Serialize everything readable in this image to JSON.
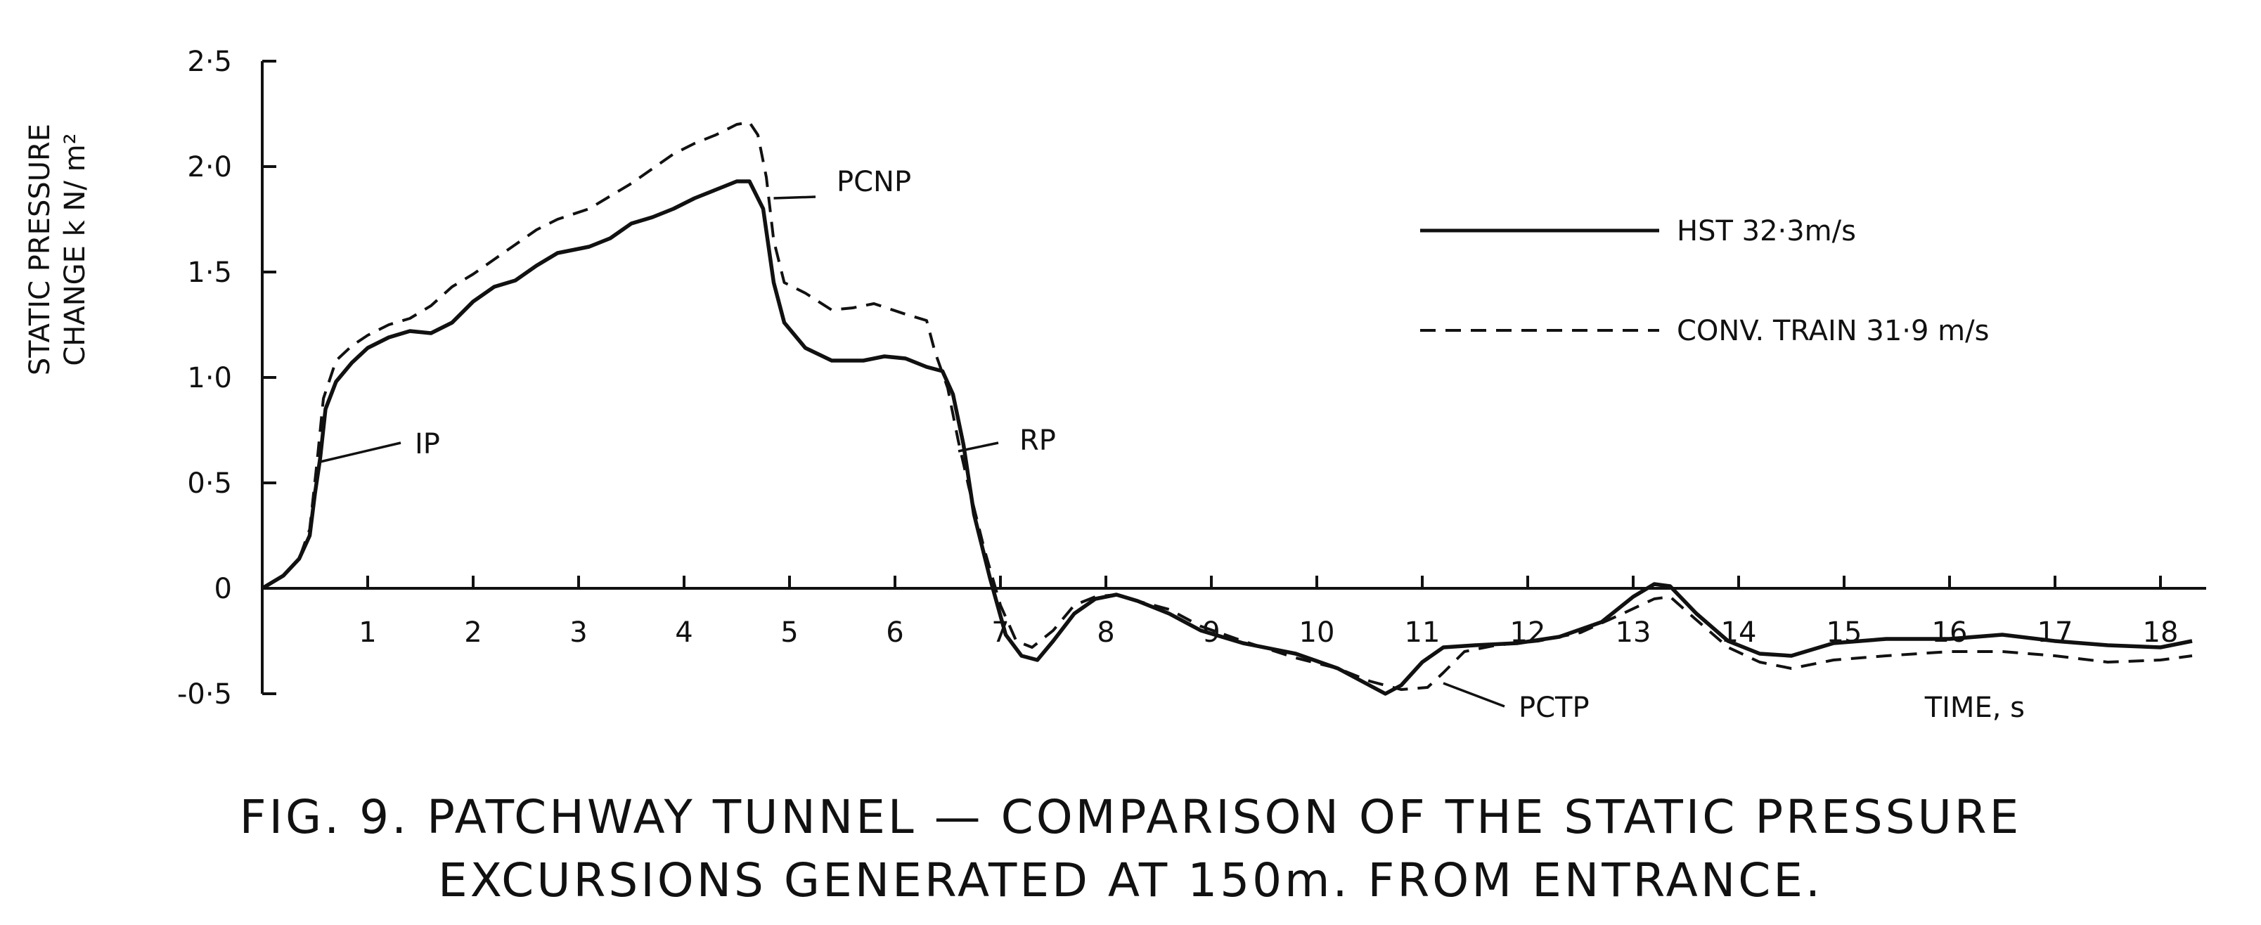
{
  "chart_data": {
    "type": "line",
    "ylabel": [
      "STATIC PRESSURE",
      "CHANGE k N/ m²"
    ],
    "xlabel": "TIME, s",
    "xlim": [
      0,
      18.3
    ],
    "ylim": [
      -0.5,
      2.5
    ],
    "x_ticks": [
      "1",
      "2",
      "3",
      "4",
      "5",
      "6",
      "7",
      "8",
      "9",
      "10",
      "11",
      "12",
      "13",
      "14",
      "15",
      "16",
      "17",
      "18"
    ],
    "y_ticks": [
      {
        "value": 2.5,
        "label": "2·5"
      },
      {
        "value": 2.0,
        "label": "2·0"
      },
      {
        "value": 1.5,
        "label": "1·5"
      },
      {
        "value": 1.0,
        "label": "1·0"
      },
      {
        "value": 0.5,
        "label": "0·5"
      },
      {
        "value": 0,
        "label": "0"
      },
      {
        "value": -0.5,
        "label": "-0·5"
      }
    ],
    "legend_position": "upper-right",
    "series": [
      {
        "name": "HST 32·3m/s",
        "style": "solid",
        "points": [
          [
            0,
            0
          ],
          [
            0.2,
            0.06
          ],
          [
            0.35,
            0.14
          ],
          [
            0.45,
            0.25
          ],
          [
            0.5,
            0.45
          ],
          [
            0.55,
            0.62
          ],
          [
            0.6,
            0.85
          ],
          [
            0.7,
            0.98
          ],
          [
            0.85,
            1.07
          ],
          [
            1.0,
            1.14
          ],
          [
            1.2,
            1.19
          ],
          [
            1.4,
            1.22
          ],
          [
            1.6,
            1.21
          ],
          [
            1.8,
            1.26
          ],
          [
            2.0,
            1.36
          ],
          [
            2.2,
            1.43
          ],
          [
            2.4,
            1.46
          ],
          [
            2.6,
            1.53
          ],
          [
            2.8,
            1.59
          ],
          [
            3.1,
            1.62
          ],
          [
            3.3,
            1.66
          ],
          [
            3.5,
            1.73
          ],
          [
            3.7,
            1.76
          ],
          [
            3.9,
            1.8
          ],
          [
            4.1,
            1.85
          ],
          [
            4.3,
            1.89
          ],
          [
            4.5,
            1.93
          ],
          [
            4.62,
            1.93
          ],
          [
            4.75,
            1.8
          ],
          [
            4.85,
            1.45
          ],
          [
            4.95,
            1.26
          ],
          [
            5.15,
            1.14
          ],
          [
            5.4,
            1.08
          ],
          [
            5.7,
            1.08
          ],
          [
            5.9,
            1.1
          ],
          [
            6.1,
            1.09
          ],
          [
            6.3,
            1.05
          ],
          [
            6.45,
            1.03
          ],
          [
            6.55,
            0.92
          ],
          [
            6.65,
            0.68
          ],
          [
            6.75,
            0.35
          ],
          [
            6.9,
            0.05
          ],
          [
            7.05,
            -0.22
          ],
          [
            7.2,
            -0.32
          ],
          [
            7.35,
            -0.34
          ],
          [
            7.5,
            -0.25
          ],
          [
            7.7,
            -0.12
          ],
          [
            7.9,
            -0.05
          ],
          [
            8.1,
            -0.03
          ],
          [
            8.3,
            -0.06
          ],
          [
            8.6,
            -0.12
          ],
          [
            8.9,
            -0.2
          ],
          [
            9.3,
            -0.26
          ],
          [
            9.8,
            -0.31
          ],
          [
            10.2,
            -0.38
          ],
          [
            10.5,
            -0.46
          ],
          [
            10.65,
            -0.5
          ],
          [
            10.8,
            -0.46
          ],
          [
            11.0,
            -0.35
          ],
          [
            11.2,
            -0.28
          ],
          [
            11.5,
            -0.27
          ],
          [
            11.9,
            -0.26
          ],
          [
            12.3,
            -0.23
          ],
          [
            12.7,
            -0.16
          ],
          [
            13.0,
            -0.04
          ],
          [
            13.2,
            0.02
          ],
          [
            13.35,
            0.01
          ],
          [
            13.6,
            -0.12
          ],
          [
            13.9,
            -0.25
          ],
          [
            14.2,
            -0.31
          ],
          [
            14.5,
            -0.32
          ],
          [
            14.9,
            -0.26
          ],
          [
            15.4,
            -0.24
          ],
          [
            16.0,
            -0.24
          ],
          [
            16.5,
            -0.22
          ],
          [
            17.0,
            -0.25
          ],
          [
            17.5,
            -0.27
          ],
          [
            18.0,
            -0.28
          ],
          [
            18.3,
            -0.25
          ]
        ]
      },
      {
        "name": "CONV. TRAIN 31·9 m/s",
        "style": "dashed",
        "points": [
          [
            0,
            0
          ],
          [
            0.2,
            0.06
          ],
          [
            0.35,
            0.14
          ],
          [
            0.45,
            0.28
          ],
          [
            0.52,
            0.6
          ],
          [
            0.58,
            0.9
          ],
          [
            0.7,
            1.08
          ],
          [
            0.85,
            1.15
          ],
          [
            1.0,
            1.2
          ],
          [
            1.2,
            1.25
          ],
          [
            1.4,
            1.28
          ],
          [
            1.6,
            1.34
          ],
          [
            1.8,
            1.43
          ],
          [
            2.0,
            1.49
          ],
          [
            2.2,
            1.56
          ],
          [
            2.4,
            1.63
          ],
          [
            2.6,
            1.7
          ],
          [
            2.8,
            1.75
          ],
          [
            3.1,
            1.8
          ],
          [
            3.3,
            1.86
          ],
          [
            3.5,
            1.92
          ],
          [
            3.7,
            1.99
          ],
          [
            3.9,
            2.06
          ],
          [
            4.1,
            2.11
          ],
          [
            4.3,
            2.15
          ],
          [
            4.5,
            2.2
          ],
          [
            4.62,
            2.21
          ],
          [
            4.7,
            2.15
          ],
          [
            4.78,
            1.95
          ],
          [
            4.85,
            1.65
          ],
          [
            4.95,
            1.45
          ],
          [
            5.15,
            1.4
          ],
          [
            5.4,
            1.32
          ],
          [
            5.6,
            1.33
          ],
          [
            5.8,
            1.35
          ],
          [
            6.1,
            1.3
          ],
          [
            6.3,
            1.27
          ],
          [
            6.38,
            1.12
          ],
          [
            6.5,
            0.95
          ],
          [
            6.6,
            0.7
          ],
          [
            6.7,
            0.48
          ],
          [
            6.85,
            0.18
          ],
          [
            7.0,
            -0.08
          ],
          [
            7.15,
            -0.25
          ],
          [
            7.3,
            -0.28
          ],
          [
            7.5,
            -0.2
          ],
          [
            7.7,
            -0.08
          ],
          [
            7.9,
            -0.04
          ],
          [
            8.1,
            -0.03
          ],
          [
            8.3,
            -0.06
          ],
          [
            8.6,
            -0.1
          ],
          [
            8.9,
            -0.18
          ],
          [
            9.3,
            -0.25
          ],
          [
            9.8,
            -0.33
          ],
          [
            10.2,
            -0.38
          ],
          [
            10.5,
            -0.44
          ],
          [
            10.8,
            -0.48
          ],
          [
            11.05,
            -0.47
          ],
          [
            11.2,
            -0.4
          ],
          [
            11.4,
            -0.3
          ],
          [
            11.7,
            -0.27
          ],
          [
            12.1,
            -0.25
          ],
          [
            12.5,
            -0.21
          ],
          [
            12.9,
            -0.12
          ],
          [
            13.2,
            -0.05
          ],
          [
            13.35,
            -0.04
          ],
          [
            13.6,
            -0.15
          ],
          [
            13.9,
            -0.28
          ],
          [
            14.2,
            -0.35
          ],
          [
            14.5,
            -0.38
          ],
          [
            14.9,
            -0.34
          ],
          [
            15.4,
            -0.32
          ],
          [
            16.0,
            -0.3
          ],
          [
            16.5,
            -0.3
          ],
          [
            17.0,
            -0.32
          ],
          [
            17.5,
            -0.35
          ],
          [
            18.0,
            -0.34
          ],
          [
            18.3,
            -0.32
          ]
        ]
      }
    ],
    "annotations": [
      {
        "text": "IP",
        "x": 0.55,
        "y": 0.6
      },
      {
        "text": "PCNP",
        "x": 4.85,
        "y": 1.85
      },
      {
        "text": "RP",
        "x": 6.6,
        "y": 0.65
      },
      {
        "text": "PCTP",
        "x": 11.2,
        "y": -0.45
      }
    ]
  },
  "caption": {
    "line1": "FIG. 9. PATCHWAY TUNNEL — COMPARISON OF THE STATIC PRESSURE",
    "line2": "EXCURSIONS GENERATED AT 150m. FROM ENTRANCE."
  }
}
